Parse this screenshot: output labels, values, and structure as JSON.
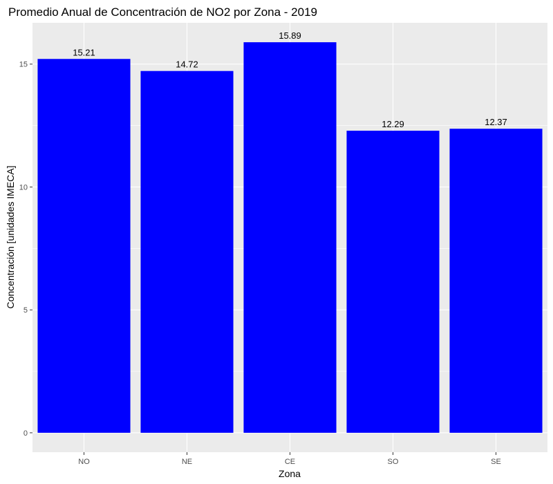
{
  "chart_data": {
    "type": "bar",
    "title": "Promedio Anual de Concentración de NO2 por Zona - 2019",
    "xlabel": "Zona",
    "ylabel": "Concentración [unidades IMECA]",
    "categories": [
      "NO",
      "NE",
      "CE",
      "SO",
      "SE"
    ],
    "values": [
      15.21,
      14.72,
      15.89,
      12.29,
      12.37
    ],
    "data_labels": [
      "15.21",
      "14.72",
      "15.89",
      "12.29",
      "12.37"
    ],
    "y_ticks": [
      0,
      5,
      10,
      15
    ],
    "y_tick_labels": [
      "0",
      "5",
      "10",
      "15"
    ],
    "ylim": [
      -0.79,
      16.68
    ],
    "grid": true,
    "legend": "none",
    "bar_color": "#0000ff",
    "panel_background": "#ebebeb",
    "grid_color": "#ffffff"
  }
}
